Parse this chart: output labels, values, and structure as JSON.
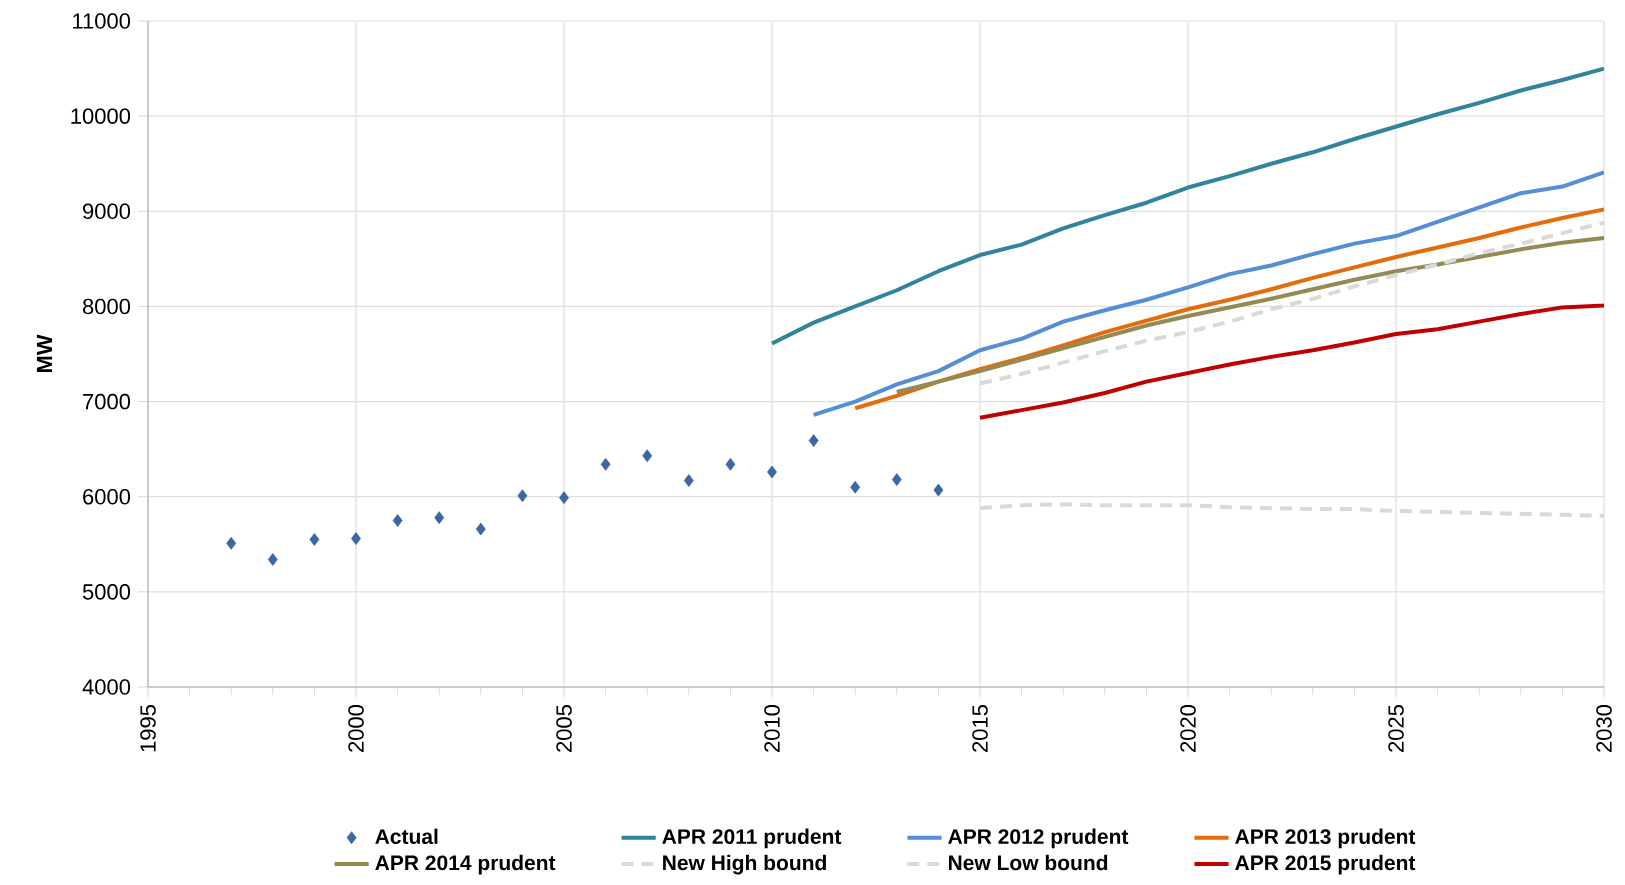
{
  "chart_data": {
    "type": "line",
    "ylabel": "MW",
    "xlim": [
      1995,
      2030
    ],
    "xticks": [
      1995,
      2000,
      2005,
      2010,
      2015,
      2020,
      2025,
      2030
    ],
    "ylim": [
      4000,
      11000
    ],
    "yticks": [
      4000,
      5000,
      6000,
      7000,
      8000,
      9000,
      10000,
      11000
    ],
    "grid": true,
    "legend": "bottom",
    "series": [
      {
        "name": "Actual",
        "type": "scatter",
        "marker": "diamond",
        "color": "#3c67a0",
        "x": [
          1997,
          1998,
          1999,
          2000,
          2001,
          2002,
          2003,
          2004,
          2005,
          2006,
          2007,
          2008,
          2009,
          2010,
          2011,
          2012,
          2013,
          2014
        ],
        "values": [
          5510,
          5340,
          5550,
          5560,
          5750,
          5780,
          5660,
          6010,
          5990,
          6340,
          6430,
          6170,
          6340,
          6260,
          6590,
          6100,
          6180,
          6070
        ]
      },
      {
        "name": "APR 2011 prudent",
        "color": "#31849b",
        "x": [
          2010,
          2011,
          2012,
          2013,
          2014,
          2015,
          2016,
          2017,
          2018,
          2019,
          2020,
          2021,
          2022,
          2023,
          2024,
          2025,
          2026,
          2027,
          2028,
          2029,
          2030
        ],
        "values": [
          7610,
          7830,
          8000,
          8170,
          8370,
          8540,
          8650,
          8820,
          8960,
          9090,
          9250,
          9370,
          9500,
          9620,
          9760,
          9890,
          10020,
          10140,
          10270,
          10380,
          10500
        ]
      },
      {
        "name": "APR 2012 prudent",
        "color": "#558ed5",
        "x": [
          2011,
          2012,
          2013,
          2014,
          2015,
          2016,
          2017,
          2018,
          2019,
          2020,
          2021,
          2022,
          2023,
          2024,
          2025,
          2026,
          2027,
          2028,
          2029,
          2030
        ],
        "values": [
          6860,
          7000,
          7180,
          7320,
          7540,
          7660,
          7840,
          7960,
          8070,
          8200,
          8340,
          8430,
          8550,
          8660,
          8740,
          8890,
          9040,
          9190,
          9260,
          9410
        ]
      },
      {
        "name": "APR 2013 prudent",
        "color": "#e46c0a",
        "x": [
          2012,
          2013,
          2014,
          2015,
          2016,
          2017,
          2018,
          2019,
          2020,
          2021,
          2022,
          2023,
          2024,
          2025,
          2026,
          2027,
          2028,
          2029,
          2030
        ],
        "values": [
          6930,
          7060,
          7210,
          7340,
          7460,
          7590,
          7730,
          7850,
          7970,
          8070,
          8180,
          8300,
          8410,
          8520,
          8620,
          8720,
          8830,
          8930,
          9020
        ]
      },
      {
        "name": "APR 2014 prudent",
        "color": "#948a54",
        "x": [
          2013,
          2014,
          2015,
          2016,
          2017,
          2018,
          2019,
          2020,
          2021,
          2022,
          2023,
          2024,
          2025,
          2026,
          2027,
          2028,
          2029,
          2030
        ],
        "values": [
          7100,
          7210,
          7320,
          7440,
          7560,
          7680,
          7800,
          7900,
          7990,
          8080,
          8180,
          8280,
          8370,
          8440,
          8520,
          8600,
          8670,
          8720
        ]
      },
      {
        "name": "New High bound",
        "line_style": "dashed",
        "color": "#d9d9d9",
        "x": [
          2015,
          2016,
          2017,
          2018,
          2019,
          2020,
          2021,
          2022,
          2023,
          2024,
          2025,
          2026,
          2027,
          2028,
          2029,
          2030
        ],
        "values": [
          7190,
          7290,
          7410,
          7530,
          7640,
          7730,
          7840,
          7970,
          8080,
          8210,
          8330,
          8440,
          8560,
          8660,
          8770,
          8880
        ]
      },
      {
        "name": "New Low bound",
        "line_style": "dashed",
        "color": "#d9d9d9",
        "x": [
          2015,
          2016,
          2017,
          2018,
          2019,
          2020,
          2021,
          2022,
          2023,
          2024,
          2025,
          2026,
          2027,
          2028,
          2029,
          2030
        ],
        "values": [
          5880,
          5910,
          5920,
          5910,
          5910,
          5910,
          5890,
          5880,
          5870,
          5870,
          5850,
          5840,
          5830,
          5820,
          5810,
          5800
        ]
      },
      {
        "name": "APR 2015 prudent",
        "color": "#c00000",
        "x": [
          2015,
          2016,
          2017,
          2018,
          2019,
          2020,
          2021,
          2022,
          2023,
          2024,
          2025,
          2026,
          2027,
          2028,
          2029,
          2030
        ],
        "values": [
          6830,
          6910,
          6990,
          7090,
          7210,
          7300,
          7390,
          7470,
          7540,
          7620,
          7710,
          7760,
          7840,
          7920,
          7990,
          8010
        ]
      }
    ]
  }
}
